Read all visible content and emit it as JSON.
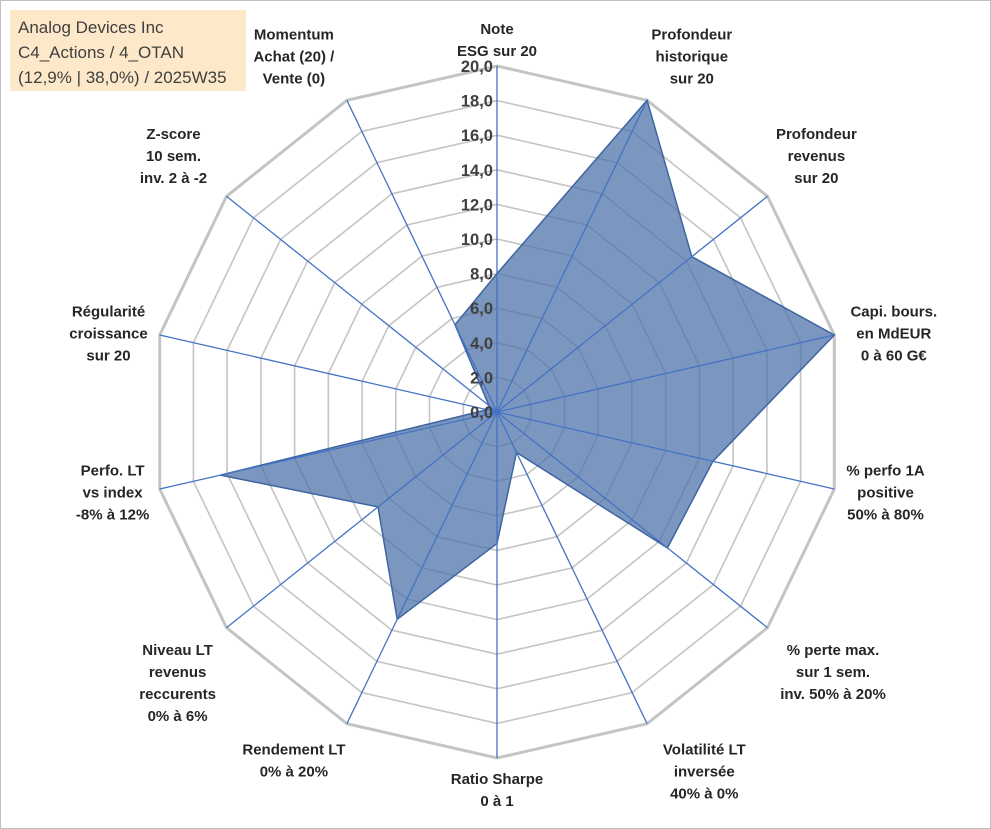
{
  "info": {
    "company": "Analog Devices Inc",
    "portfolio": "C4_Actions / 4_OTAN",
    "stats": "(12,9% | 38,0%) / 2025W35"
  },
  "chart_data": {
    "type": "radar",
    "title": "",
    "rmin": 0,
    "rmax": 20,
    "tick_step": 2,
    "tick_labels": [
      "0,0",
      "2,0",
      "4,0",
      "6,0",
      "8,0",
      "10,0",
      "12,0",
      "14,0",
      "16,0",
      "18,0",
      "20,0"
    ],
    "axes": [
      {
        "label": [
          "Note",
          "ESG sur 20"
        ],
        "value": 8.0
      },
      {
        "label": [
          "Profondeur",
          "historique",
          "sur 20"
        ],
        "value": 20.0
      },
      {
        "label": [
          "Profondeur",
          "revenus",
          "sur 20"
        ],
        "value": 14.4
      },
      {
        "label": [
          "Capi. bours.",
          "en MdEUR",
          "0 à 60 G€"
        ],
        "value": 20.0
      },
      {
        "label": [
          "% perfo 1A",
          "positive",
          "50% à 80%"
        ],
        "value": 12.8
      },
      {
        "label": [
          "% perte max.",
          "sur 1 sem.",
          "inv. 50% à 20%"
        ],
        "value": 12.6
      },
      {
        "label": [
          "Volatilité LT",
          "inversée",
          "40% à 0%"
        ],
        "value": 2.6
      },
      {
        "label": [
          "Ratio Sharpe",
          "0 à 1"
        ],
        "value": 7.6
      },
      {
        "label": [
          "Rendement LT",
          "0% à 20%"
        ],
        "value": 13.3
      },
      {
        "label": [
          "Niveau LT",
          "revenus",
          "reccurents",
          "0% à 6%"
        ],
        "value": 8.8
      },
      {
        "label": [
          "Perfo. LT",
          "vs index",
          "-8% à 12%"
        ],
        "value": 16.4
      },
      {
        "label": [
          "Régularité",
          "croissance",
          "sur 20"
        ],
        "value": 0.6
      },
      {
        "label": [
          "Z-score",
          "10 sem.",
          "inv. 2 à -2"
        ],
        "value": 0.6
      },
      {
        "label": [
          "Momentum",
          "Achat (20) /",
          "Vente (0)"
        ],
        "value": 5.6
      }
    ],
    "colors": {
      "fill": "#4f74aa",
      "fill_opacity": 0.75,
      "stroke": "#3e64a3",
      "grid": "#c4c4c4",
      "spoke": "#4472c4"
    }
  }
}
